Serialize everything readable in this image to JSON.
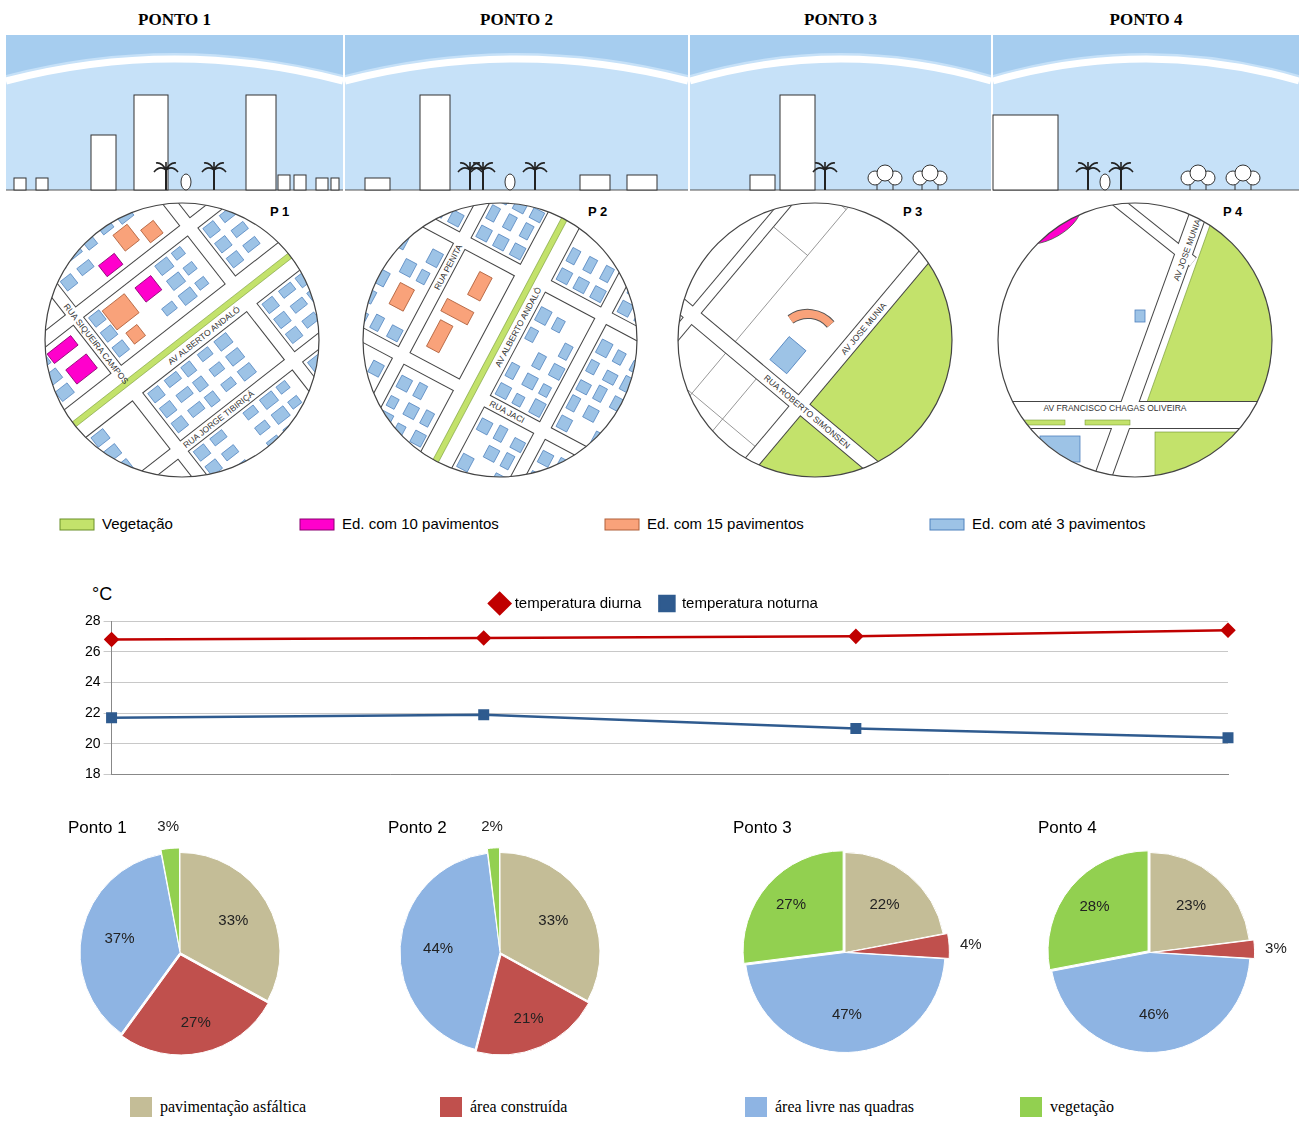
{
  "panels": [
    {
      "title": "PONTO 1",
      "map_label": "P 1",
      "streets": [
        "RUA SIQUEIRA CAMPOS",
        "RUA JORGE TIBIRIÇÁ",
        "AV ALBERTO ANDALÓ"
      ]
    },
    {
      "title": "PONTO 2",
      "map_label": "P 2",
      "streets": [
        "RUA PENITA",
        "AV ALBERTO ANDALÓ",
        "RUA JACI"
      ]
    },
    {
      "title": "PONTO 3",
      "map_label": "P 3",
      "streets": [
        "RUA ROBERTO SIMONSEN",
        "AV JOSE MUNIA"
      ]
    },
    {
      "title": "PONTO 4",
      "map_label": "P 4",
      "streets": [
        "AV JOSE MUNIA",
        "AV FRANCISCO CHAGAS OLIVEIRA"
      ]
    }
  ],
  "map_legend": [
    {
      "label": "Vegetação",
      "color": "#c3e26b"
    },
    {
      "label": "Ed. com 10 pavimentos",
      "color": "#ff00cc"
    },
    {
      "label": "Ed. com 15 pavimentos",
      "color": "#f9a27a"
    },
    {
      "label": "Ed. com até 3 pavimentos",
      "color": "#9dc3e6"
    }
  ],
  "chart_data": [
    {
      "type": "line",
      "y_label": "°C",
      "categories": [
        null,
        null,
        null,
        null
      ],
      "series": [
        {
          "name": "temperatura diurna",
          "color": "#c00000",
          "marker": "diamond",
          "values": [
            26.8,
            26.9,
            27.0,
            27.4
          ]
        },
        {
          "name": "temperatura noturna",
          "color": "#2f5b8f",
          "marker": "square",
          "values": [
            21.7,
            21.9,
            21.0,
            20.4
          ]
        }
      ],
      "ylim": [
        18,
        28
      ],
      "yticks": [
        18,
        20,
        22,
        24,
        26,
        28
      ],
      "grid": true,
      "legend": "top"
    },
    {
      "type": "pie",
      "title": "Ponto 1",
      "categories": [
        "pavimentação asfáltica",
        "área construída",
        "área livre nas quadras",
        "vegetação"
      ],
      "values": [
        33,
        27,
        37,
        3
      ],
      "value_labels": [
        "33%",
        "27%",
        "37%",
        "3%"
      ],
      "colors": [
        "#c4bd97",
        "#c0504d",
        "#8eb4e3",
        "#92d050"
      ],
      "data_labels": true
    },
    {
      "type": "pie",
      "title": "Ponto 2",
      "categories": [
        "pavimentação asfáltica",
        "área construída",
        "área livre nas quadras",
        "vegetação"
      ],
      "values": [
        33,
        21,
        44,
        2
      ],
      "value_labels": [
        "33%",
        "21%",
        "44%",
        "2%"
      ],
      "colors": [
        "#c4bd97",
        "#c0504d",
        "#8eb4e3",
        "#92d050"
      ],
      "data_labels": true
    },
    {
      "type": "pie",
      "title": "Ponto 3",
      "categories": [
        "pavimentação asfáltica",
        "área construída",
        "área livre nas quadras",
        "vegetação"
      ],
      "values": [
        22,
        4,
        47,
        27
      ],
      "value_labels": [
        "22%",
        "4%",
        "47%",
        "27%"
      ],
      "colors": [
        "#c4bd97",
        "#c0504d",
        "#8eb4e3",
        "#92d050"
      ],
      "data_labels": true
    },
    {
      "type": "pie",
      "title": "Ponto 4",
      "categories": [
        "pavimentação asfáltica",
        "área construída",
        "área livre nas quadras",
        "vegetação"
      ],
      "values": [
        23,
        3,
        46,
        28
      ],
      "value_labels": [
        "23%",
        "3%",
        "46%",
        "28%"
      ],
      "colors": [
        "#c4bd97",
        "#c0504d",
        "#8eb4e3",
        "#92d050"
      ],
      "data_labels": true
    }
  ]
}
